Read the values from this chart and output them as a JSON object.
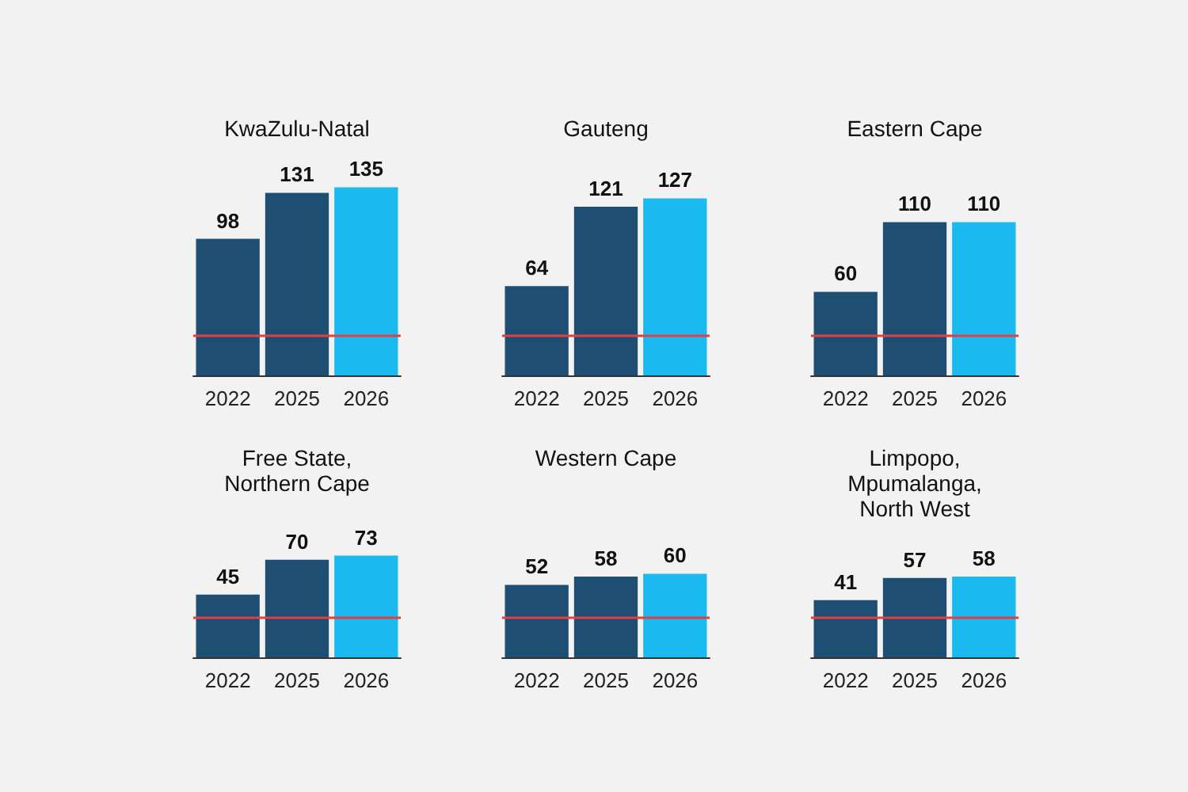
{
  "chart_data": [
    {
      "type": "bar",
      "title": "KwaZulu-Natal",
      "categories": [
        "2022",
        "2025",
        "2026"
      ],
      "values": [
        98,
        131,
        135
      ],
      "colors": [
        "#1f4e73",
        "#1f4e73",
        "#1ab9f0"
      ],
      "data_labels": true,
      "tick_labels": "x",
      "grid": false,
      "ref_lines": [
        {
          "axis": "y",
          "value": 29,
          "color": "#e0403f"
        }
      ]
    },
    {
      "type": "bar",
      "title": "Gauteng",
      "categories": [
        "2022",
        "2025",
        "2026"
      ],
      "values": [
        64,
        121,
        127
      ],
      "colors": [
        "#1f4e73",
        "#1f4e73",
        "#1ab9f0"
      ],
      "data_labels": true,
      "tick_labels": "x",
      "grid": false,
      "ref_lines": [
        {
          "axis": "y",
          "value": 29,
          "color": "#e0403f"
        }
      ]
    },
    {
      "type": "bar",
      "title": "Eastern Cape",
      "categories": [
        "2022",
        "2025",
        "2026"
      ],
      "values": [
        60,
        110,
        110
      ],
      "colors": [
        "#1f4e73",
        "#1f4e73",
        "#1ab9f0"
      ],
      "data_labels": true,
      "tick_labels": "x",
      "grid": false,
      "ref_lines": [
        {
          "axis": "y",
          "value": 29,
          "color": "#e0403f"
        }
      ]
    },
    {
      "type": "bar",
      "title": "Free State,\nNorthern Cape",
      "categories": [
        "2022",
        "2025",
        "2026"
      ],
      "values": [
        45,
        70,
        73
      ],
      "colors": [
        "#1f4e73",
        "#1f4e73",
        "#1ab9f0"
      ],
      "data_labels": true,
      "tick_labels": "x",
      "grid": false,
      "ref_lines": [
        {
          "axis": "y",
          "value": 29,
          "color": "#e0403f"
        }
      ]
    },
    {
      "type": "bar",
      "title": "Western Cape",
      "categories": [
        "2022",
        "2025",
        "2026"
      ],
      "values": [
        52,
        58,
        60
      ],
      "colors": [
        "#1f4e73",
        "#1f4e73",
        "#1ab9f0"
      ],
      "data_labels": true,
      "tick_labels": "x",
      "grid": false,
      "ref_lines": [
        {
          "axis": "y",
          "value": 29,
          "color": "#e0403f"
        }
      ]
    },
    {
      "type": "bar",
      "title": "Limpopo,\nMpumalanga,\nNorth West",
      "categories": [
        "2022",
        "2025",
        "2026"
      ],
      "values": [
        41,
        57,
        58
      ],
      "colors": [
        "#1f4e73",
        "#1f4e73",
        "#1ab9f0"
      ],
      "data_labels": true,
      "tick_labels": "x",
      "grid": false,
      "ref_lines": [
        {
          "axis": "y",
          "value": 29,
          "color": "#e0403f"
        }
      ]
    }
  ]
}
